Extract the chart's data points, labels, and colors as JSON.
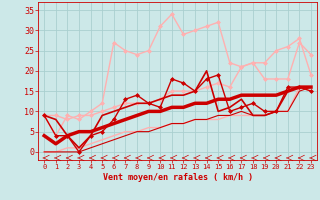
{
  "title": "",
  "xlabel": "Vent moyen/en rafales ( km/h )",
  "ylabel": "",
  "xlim": [
    -0.5,
    23.5
  ],
  "ylim": [
    -2,
    37
  ],
  "bg_color": "#cce8e8",
  "grid_color": "#aacfcf",
  "xlabel_color": "#cc0000",
  "tick_color": "#cc0000",
  "series": [
    {
      "x": [
        0,
        1,
        2,
        3,
        4,
        5,
        6,
        7,
        8,
        9,
        10,
        11,
        12,
        13,
        14,
        15,
        16,
        17,
        18,
        19,
        20,
        21,
        22,
        23
      ],
      "y": [
        9,
        4,
        4,
        0,
        4,
        5,
        8,
        13,
        14,
        12,
        11,
        18,
        17,
        15,
        18,
        19,
        10,
        11,
        12,
        10,
        10,
        16,
        16,
        15
      ],
      "color": "#cc0000",
      "lw": 1.0,
      "marker": "D",
      "ms": 2.0,
      "zorder": 5
    },
    {
      "x": [
        0,
        1,
        2,
        3,
        4,
        5,
        6,
        7,
        8,
        9,
        10,
        11,
        12,
        13,
        14,
        15,
        16,
        17,
        18,
        19,
        20,
        21,
        22,
        23
      ],
      "y": [
        4,
        2,
        4,
        5,
        5,
        6,
        7,
        8,
        9,
        10,
        10,
        11,
        11,
        12,
        12,
        13,
        13,
        14,
        14,
        14,
        14,
        15,
        16,
        16
      ],
      "color": "#cc0000",
      "lw": 2.5,
      "marker": null,
      "ms": 0,
      "zorder": 6
    },
    {
      "x": [
        0,
        1,
        2,
        3,
        4,
        5,
        6,
        7,
        8,
        9,
        10,
        11,
        12,
        13,
        14,
        15,
        16,
        17,
        18,
        19,
        20,
        21,
        22,
        23
      ],
      "y": [
        0,
        0,
        0,
        0,
        1,
        2,
        3,
        4,
        5,
        5,
        6,
        7,
        7,
        8,
        8,
        9,
        9,
        10,
        9,
        9,
        10,
        10,
        15,
        16
      ],
      "color": "#cc0000",
      "lw": 0.8,
      "marker": null,
      "ms": 0,
      "zorder": 3
    },
    {
      "x": [
        0,
        1,
        2,
        3,
        4,
        5,
        6,
        7,
        8,
        9,
        10,
        11,
        12,
        13,
        14,
        15,
        16,
        17,
        18,
        19,
        20,
        21,
        22,
        23
      ],
      "y": [
        9,
        8,
        4,
        1,
        4,
        9,
        10,
        11,
        12,
        12,
        13,
        14,
        14,
        15,
        20,
        10,
        11,
        13,
        9,
        9,
        10,
        15,
        16,
        16
      ],
      "color": "#cc0000",
      "lw": 1.2,
      "marker": null,
      "ms": 0,
      "zorder": 4
    },
    {
      "x": [
        0,
        1,
        2,
        3,
        4,
        5,
        6,
        7,
        8,
        9,
        10,
        11,
        12,
        13,
        14,
        15,
        16,
        17,
        18,
        19,
        20,
        21,
        22,
        23
      ],
      "y": [
        9,
        9,
        8,
        9,
        9,
        10,
        11,
        12,
        12,
        12,
        13,
        15,
        15,
        15,
        16,
        17,
        16,
        21,
        22,
        18,
        18,
        18,
        27,
        24
      ],
      "color": "#ffb0b0",
      "lw": 1.0,
      "marker": "D",
      "ms": 2.0,
      "zorder": 3
    },
    {
      "x": [
        0,
        1,
        2,
        3,
        4,
        5,
        6,
        7,
        8,
        9,
        10,
        11,
        12,
        13,
        14,
        15,
        16,
        17,
        18,
        19,
        20,
        21,
        22,
        23
      ],
      "y": [
        9,
        4,
        9,
        8,
        10,
        12,
        27,
        25,
        24,
        25,
        31,
        34,
        29,
        30,
        31,
        32,
        22,
        21,
        22,
        22,
        25,
        26,
        28,
        19
      ],
      "color": "#ffb0b0",
      "lw": 1.0,
      "marker": "D",
      "ms": 2.0,
      "zorder": 2
    },
    {
      "x": [
        0,
        1,
        2,
        3,
        4,
        5,
        6,
        7,
        8,
        9,
        10,
        11,
        12,
        13,
        14,
        15,
        16,
        17,
        18,
        19,
        20,
        21,
        22,
        23
      ],
      "y": [
        0,
        0,
        1,
        1,
        2,
        3,
        4,
        5,
        5,
        6,
        6,
        7,
        7,
        8,
        8,
        8,
        9,
        9,
        9,
        9,
        10,
        10,
        16,
        15
      ],
      "color": "#ffb0b0",
      "lw": 1.0,
      "marker": null,
      "ms": 0,
      "zorder": 2
    }
  ],
  "xticks": [
    0,
    1,
    2,
    3,
    4,
    5,
    6,
    7,
    8,
    9,
    10,
    11,
    12,
    13,
    14,
    15,
    16,
    17,
    18,
    19,
    20,
    21,
    22,
    23
  ],
  "yticks": [
    0,
    5,
    10,
    15,
    20,
    25,
    30,
    35
  ]
}
